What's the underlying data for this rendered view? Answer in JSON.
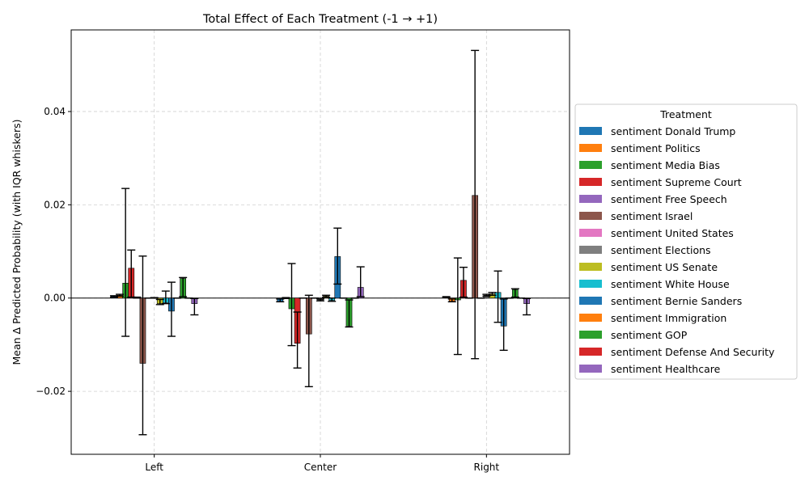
{
  "chart_data": {
    "type": "bar",
    "title": "Total Effect of Each Treatment (-1 → +1)",
    "xlabel": "",
    "ylabel": "Mean Δ Predicted Probability (with IQR whiskers)",
    "categories": [
      "Left",
      "Center",
      "Right"
    ],
    "ylim": [
      -0.0335,
      0.0575
    ],
    "yticks": [
      -0.02,
      0.0,
      0.02,
      0.04
    ],
    "ytick_labels": [
      "−0.02",
      "0.00",
      "0.02",
      "0.04"
    ],
    "grid": true,
    "legend_title": "Treatment",
    "legend_position": "center-right (outside)",
    "series": [
      {
        "name": "sentiment Donald Trump",
        "color": "#1f77b4",
        "values": [
          0.0004,
          -0.0008,
          0.0002
        ],
        "iqr_low": [
          0.0002,
          -0.0008,
          0.0001
        ],
        "iqr_high": [
          0.0005,
          -0.0002,
          0.0003
        ]
      },
      {
        "name": "sentiment Politics",
        "color": "#ff7f0e",
        "values": [
          0.0006,
          0.0,
          -0.0007
        ],
        "iqr_low": [
          0.0004,
          -0.0001,
          -0.0008
        ],
        "iqr_high": [
          0.0008,
          0.0001,
          -0.0002
        ]
      },
      {
        "name": "sentiment Media Bias",
        "color": "#2ca02c",
        "values": [
          0.0032,
          -0.0023,
          -0.0004
        ],
        "iqr_low": [
          -0.0082,
          -0.0102,
          -0.0121
        ],
        "iqr_high": [
          0.0235,
          0.0074,
          0.0086
        ]
      },
      {
        "name": "sentiment Supreme Court",
        "color": "#d62728",
        "values": [
          0.0064,
          -0.0097,
          0.0038
        ],
        "iqr_low": [
          0.0002,
          -0.015,
          0.0002
        ],
        "iqr_high": [
          0.0103,
          -0.003,
          0.0066
        ]
      },
      {
        "name": "sentiment Free Speech",
        "color": "#9467bd",
        "values": [
          0.0001,
          0.0,
          0.0
        ],
        "iqr_low": [
          0.0,
          0.0,
          0.0
        ],
        "iqr_high": [
          0.0002,
          0.0,
          0.0
        ]
      },
      {
        "name": "sentiment Israel",
        "color": "#8c564b",
        "values": [
          -0.014,
          -0.0077,
          0.022
        ],
        "iqr_low": [
          -0.0293,
          -0.019,
          -0.013
        ],
        "iqr_high": [
          0.009,
          0.0006,
          0.0531
        ]
      },
      {
        "name": "sentiment United States",
        "color": "#e377c2",
        "values": [
          0.0,
          0.0,
          0.0
        ],
        "iqr_low": [
          0.0,
          0.0,
          0.0
        ],
        "iqr_high": [
          0.0,
          0.0,
          0.0
        ]
      },
      {
        "name": "sentiment Elections",
        "color": "#7f7f7f",
        "values": [
          0.0,
          -0.0004,
          0.0006
        ],
        "iqr_low": [
          0.0,
          -0.0006,
          0.0004
        ],
        "iqr_high": [
          0.0001,
          -0.0002,
          0.0008
        ]
      },
      {
        "name": "sentiment US Senate",
        "color": "#bcbd22",
        "values": [
          -0.0012,
          0.0004,
          0.0009
        ],
        "iqr_low": [
          -0.0014,
          0.0002,
          0.0006
        ],
        "iqr_high": [
          -0.0003,
          0.0006,
          0.0012
        ]
      },
      {
        "name": "sentiment White House",
        "color": "#17becf",
        "values": [
          -0.001,
          -0.0005,
          0.0012
        ],
        "iqr_low": [
          -0.0012,
          -0.0007,
          -0.0052
        ],
        "iqr_high": [
          0.0015,
          0.0,
          0.0058
        ]
      },
      {
        "name": "sentiment Bernie Sanders",
        "color": "#1f77b4",
        "values": [
          -0.0028,
          0.0089,
          -0.006
        ],
        "iqr_low": [
          -0.0082,
          0.003,
          -0.0112
        ],
        "iqr_high": [
          0.0034,
          0.015,
          -0.0002
        ]
      },
      {
        "name": "sentiment Immigration",
        "color": "#ff7f0e",
        "values": [
          0.0,
          0.0,
          0.0
        ],
        "iqr_low": [
          0.0,
          0.0,
          0.0
        ],
        "iqr_high": [
          0.0,
          0.0,
          0.0
        ]
      },
      {
        "name": "sentiment GOP",
        "color": "#2ca02c",
        "values": [
          0.0042,
          -0.006,
          0.0018
        ],
        "iqr_low": [
          0.0003,
          -0.0062,
          0.0002
        ],
        "iqr_high": [
          0.0044,
          -0.0004,
          0.002
        ]
      },
      {
        "name": "sentiment Defense And Security",
        "color": "#d62728",
        "values": [
          0.0,
          0.0,
          0.0
        ],
        "iqr_low": [
          0.0,
          0.0,
          0.0
        ],
        "iqr_high": [
          0.0,
          0.0,
          0.0
        ]
      },
      {
        "name": "sentiment Healthcare",
        "color": "#9467bd",
        "values": [
          -0.0012,
          0.0023,
          -0.0012
        ],
        "iqr_low": [
          -0.0036,
          0.0003,
          -0.0036
        ],
        "iqr_high": [
          -0.0001,
          0.0067,
          -0.0001
        ]
      }
    ]
  }
}
